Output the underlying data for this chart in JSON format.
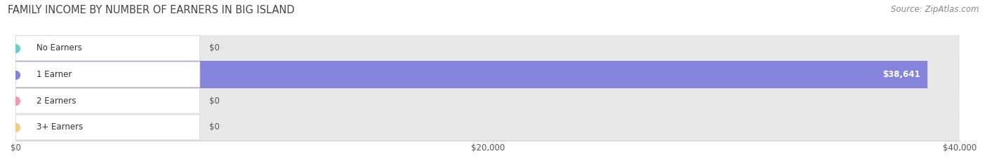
{
  "title": "Family Income by Number of Earners in Big Island",
  "title_display": "FAMILY INCOME BY NUMBER OF EARNERS IN BIG ISLAND",
  "source": "Source: ZipAtlas.com",
  "categories": [
    "No Earners",
    "1 Earner",
    "2 Earners",
    "3+ Earners"
  ],
  "values": [
    0,
    38641,
    0,
    0
  ],
  "bar_colors": [
    "#6dceca",
    "#8484dd",
    "#f299ae",
    "#f5c98a"
  ],
  "bar_bg_color": "#e8e8e8",
  "row_bg_colors": [
    "#f5f5f5",
    "#eeeef8",
    "#f5f5f5",
    "#f5f5f5"
  ],
  "max_value": 40000,
  "xticks": [
    0,
    20000,
    40000
  ],
  "xticklabels": [
    "$0",
    "$20,000",
    "$40,000"
  ],
  "value_labels": [
    "$0",
    "$38,641",
    "$0",
    "$0"
  ],
  "title_fontsize": 10.5,
  "source_fontsize": 8.5,
  "bar_height": 0.52,
  "background_color": "#ffffff"
}
